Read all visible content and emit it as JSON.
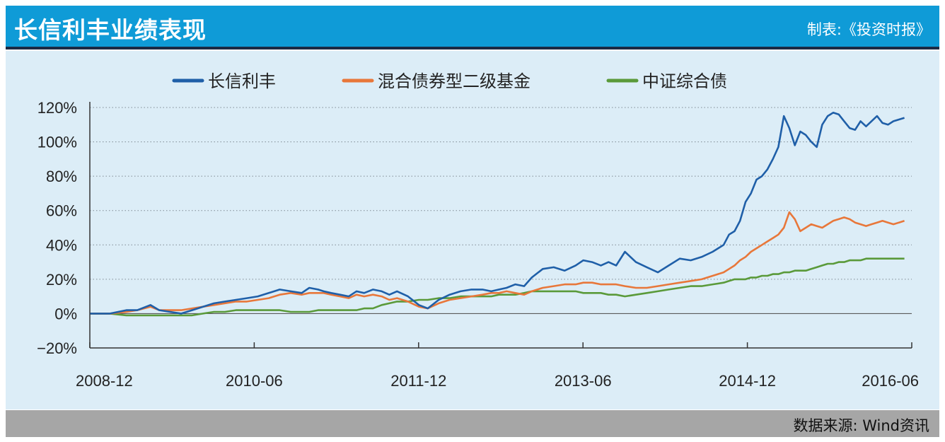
{
  "header": {
    "title": "长信利丰业绩表现",
    "credit": "制表:《投资时报》"
  },
  "footer": {
    "source": "数据来源: Wind资讯"
  },
  "colors": {
    "header_bg": "#0f9bd7",
    "panel_bg": "#dcedf7",
    "footer_bg": "#a6a6a6"
  },
  "chart_data": {
    "type": "line",
    "title": "长信利丰业绩表现",
    "xlabel": "",
    "ylabel": "",
    "ylim": [
      -20,
      120
    ],
    "yticks": [
      "120%",
      "100%",
      "80%",
      "60%",
      "40%",
      "20%",
      "0%",
      "−20%"
    ],
    "yticks_values": [
      120,
      100,
      80,
      60,
      40,
      20,
      0,
      -20
    ],
    "xticks": [
      "2008-12",
      "2010-06",
      "2011-12",
      "2013-06",
      "2014-12",
      "2016-06"
    ],
    "xticks_values": [
      2008.917,
      2010.417,
      2011.917,
      2013.417,
      2014.917,
      2016.417
    ],
    "xlim": [
      2008.917,
      2016.417
    ],
    "grid": "horizontal dotted",
    "legend_position": "top",
    "series": [
      {
        "name": "长信利丰",
        "color": "#1f5fa8",
        "x": [
          2008.92,
          2009.1,
          2009.25,
          2009.35,
          2009.47,
          2009.55,
          2009.65,
          2009.75,
          2009.85,
          2009.95,
          2010.05,
          2010.15,
          2010.25,
          2010.35,
          2010.45,
          2010.55,
          2010.65,
          2010.75,
          2010.85,
          2010.92,
          2011.0,
          2011.05,
          2011.12,
          2011.2,
          2011.28,
          2011.35,
          2011.42,
          2011.5,
          2011.58,
          2011.65,
          2011.72,
          2011.82,
          2011.92,
          2012.0,
          2012.1,
          2012.2,
          2012.3,
          2012.4,
          2012.5,
          2012.58,
          2012.65,
          2012.72,
          2012.8,
          2012.88,
          2012.95,
          2013.05,
          2013.15,
          2013.25,
          2013.35,
          2013.42,
          2013.5,
          2013.58,
          2013.65,
          2013.72,
          2013.8,
          2013.9,
          2014.0,
          2014.1,
          2014.2,
          2014.3,
          2014.4,
          2014.5,
          2014.6,
          2014.7,
          2014.75,
          2014.8,
          2014.85,
          2014.9,
          2014.95,
          2015.0,
          2015.05,
          2015.1,
          2015.15,
          2015.2,
          2015.25,
          2015.3,
          2015.35,
          2015.4,
          2015.45,
          2015.5,
          2015.55,
          2015.6,
          2015.65,
          2015.7,
          2015.75,
          2015.8,
          2015.85,
          2015.9,
          2015.95,
          2016.0,
          2016.05,
          2016.1,
          2016.15,
          2016.2,
          2016.25,
          2016.3,
          2016.35
        ],
        "values": [
          0,
          0,
          2,
          2,
          5,
          2,
          1,
          0,
          2,
          4,
          6,
          7,
          8,
          9,
          10,
          12,
          14,
          13,
          12,
          15,
          14,
          13,
          12,
          11,
          10,
          13,
          12,
          14,
          13,
          11,
          13,
          10,
          5,
          3,
          8,
          11,
          13,
          14,
          14,
          13,
          14,
          15,
          17,
          16,
          21,
          26,
          27,
          25,
          28,
          31,
          30,
          28,
          30,
          28,
          36,
          30,
          27,
          24,
          28,
          32,
          31,
          33,
          36,
          40,
          46,
          48,
          54,
          65,
          70,
          78,
          80,
          84,
          90,
          97,
          115,
          108,
          98,
          106,
          104,
          100,
          97,
          110,
          115,
          117,
          116,
          112,
          108,
          107,
          112,
          109,
          112,
          115,
          111,
          110,
          112,
          113,
          114
        ],
        "values_note": ""
      },
      {
        "name": "混合债券型二级基金",
        "color": "#e8773a",
        "x": [
          2008.92,
          2009.1,
          2009.25,
          2009.35,
          2009.47,
          2009.55,
          2009.65,
          2009.75,
          2009.85,
          2009.95,
          2010.05,
          2010.15,
          2010.25,
          2010.35,
          2010.45,
          2010.55,
          2010.65,
          2010.75,
          2010.85,
          2010.92,
          2011.0,
          2011.05,
          2011.12,
          2011.2,
          2011.28,
          2011.35,
          2011.42,
          2011.5,
          2011.58,
          2011.65,
          2011.72,
          2011.82,
          2011.92,
          2012.0,
          2012.1,
          2012.2,
          2012.3,
          2012.4,
          2012.5,
          2012.58,
          2012.65,
          2012.72,
          2012.8,
          2012.88,
          2012.95,
          2013.05,
          2013.15,
          2013.25,
          2013.35,
          2013.42,
          2013.5,
          2013.58,
          2013.65,
          2013.72,
          2013.8,
          2013.9,
          2014.0,
          2014.1,
          2014.2,
          2014.3,
          2014.4,
          2014.5,
          2014.6,
          2014.7,
          2014.75,
          2014.8,
          2014.85,
          2014.9,
          2014.95,
          2015.0,
          2015.05,
          2015.1,
          2015.15,
          2015.2,
          2015.25,
          2015.3,
          2015.35,
          2015.4,
          2015.45,
          2015.5,
          2015.55,
          2015.6,
          2015.65,
          2015.7,
          2015.75,
          2015.8,
          2015.85,
          2015.9,
          2015.95,
          2016.0,
          2016.05,
          2016.1,
          2016.15,
          2016.2,
          2016.25,
          2016.3,
          2016.35
        ],
        "values": [
          0,
          0,
          1,
          2,
          4,
          2,
          2,
          2,
          3,
          4,
          5,
          6,
          7,
          7,
          8,
          9,
          11,
          12,
          11,
          12,
          12,
          12,
          11,
          10,
          9,
          11,
          10,
          11,
          10,
          8,
          9,
          7,
          4,
          3,
          6,
          8,
          9,
          10,
          11,
          12,
          12,
          13,
          12,
          11,
          13,
          15,
          16,
          17,
          17,
          18,
          18,
          17,
          17,
          17,
          16,
          15,
          15,
          16,
          17,
          18,
          19,
          20,
          22,
          24,
          26,
          28,
          31,
          33,
          36,
          38,
          40,
          42,
          44,
          46,
          50,
          59,
          55,
          48,
          50,
          52,
          51,
          50,
          52,
          54,
          55,
          56,
          55,
          53,
          52,
          51,
          52,
          53,
          54,
          53,
          52,
          53,
          54
        ],
        "values_note": ""
      },
      {
        "name": "中证综合债",
        "color": "#5a9a3a",
        "x": [
          2008.92,
          2009.1,
          2009.25,
          2009.35,
          2009.47,
          2009.55,
          2009.65,
          2009.75,
          2009.85,
          2009.95,
          2010.05,
          2010.15,
          2010.25,
          2010.35,
          2010.45,
          2010.55,
          2010.65,
          2010.75,
          2010.85,
          2010.92,
          2011.0,
          2011.05,
          2011.12,
          2011.2,
          2011.28,
          2011.35,
          2011.42,
          2011.5,
          2011.58,
          2011.65,
          2011.72,
          2011.82,
          2011.92,
          2012.0,
          2012.1,
          2012.2,
          2012.3,
          2012.4,
          2012.5,
          2012.58,
          2012.65,
          2012.72,
          2012.8,
          2012.88,
          2012.95,
          2013.05,
          2013.15,
          2013.25,
          2013.35,
          2013.42,
          2013.5,
          2013.58,
          2013.65,
          2013.72,
          2013.8,
          2013.9,
          2014.0,
          2014.1,
          2014.2,
          2014.3,
          2014.4,
          2014.5,
          2014.6,
          2014.7,
          2014.75,
          2014.8,
          2014.85,
          2014.9,
          2014.95,
          2015.0,
          2015.05,
          2015.1,
          2015.15,
          2015.2,
          2015.25,
          2015.3,
          2015.35,
          2015.4,
          2015.45,
          2015.5,
          2015.55,
          2015.6,
          2015.65,
          2015.7,
          2015.75,
          2015.8,
          2015.85,
          2015.9,
          2015.95,
          2016.0,
          2016.05,
          2016.1,
          2016.15,
          2016.2,
          2016.25,
          2016.3,
          2016.35
        ],
        "values": [
          0,
          0,
          -1,
          -1,
          -1,
          -1,
          -1,
          -1,
          -1,
          0,
          1,
          1,
          2,
          2,
          2,
          2,
          2,
          1,
          1,
          1,
          2,
          2,
          2,
          2,
          2,
          2,
          3,
          3,
          5,
          6,
          7,
          7,
          8,
          8,
          9,
          9,
          10,
          10,
          10,
          10,
          11,
          11,
          11,
          12,
          13,
          13,
          13,
          13,
          13,
          12,
          12,
          12,
          11,
          11,
          10,
          11,
          12,
          13,
          14,
          15,
          16,
          16,
          17,
          18,
          19,
          20,
          20,
          20,
          21,
          21,
          22,
          22,
          23,
          23,
          24,
          24,
          25,
          25,
          25,
          26,
          27,
          28,
          29,
          29,
          30,
          30,
          31,
          31,
          31,
          32,
          32,
          32,
          32,
          32,
          32,
          32,
          32
        ],
        "values_note": ""
      }
    ]
  }
}
